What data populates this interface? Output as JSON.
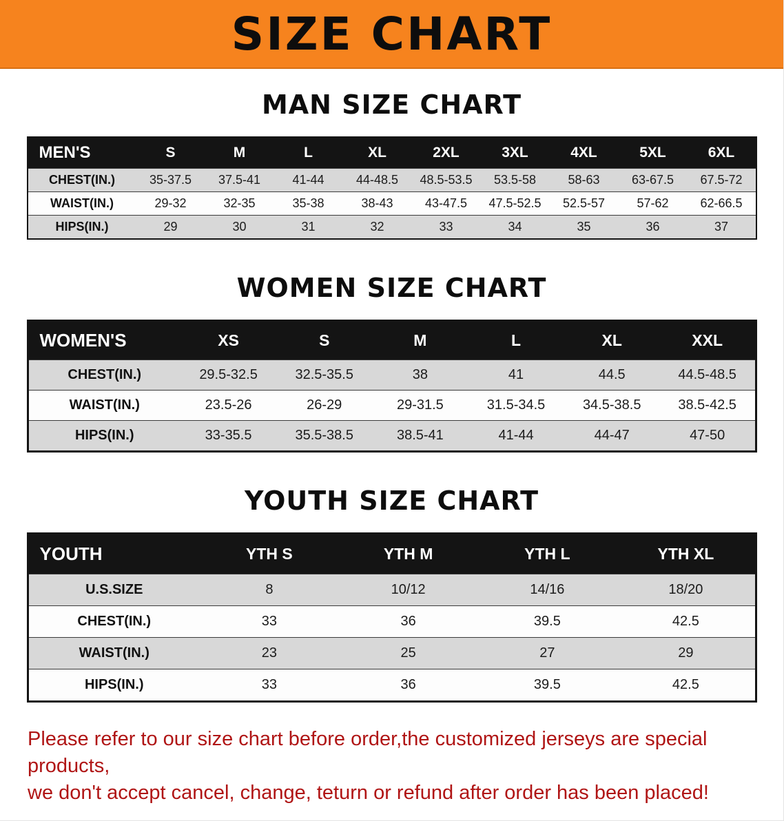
{
  "banner": {
    "title": "SIZE CHART",
    "bg_color": "#f6831e",
    "text_color": "#0d0d0d"
  },
  "sections": [
    {
      "heading": "MAN SIZE CHART",
      "table": {
        "header": [
          "MEN'S",
          "S",
          "M",
          "L",
          "XL",
          "2XL",
          "3XL",
          "4XL",
          "5XL",
          "6XL"
        ],
        "rows": [
          {
            "label": "CHEST(IN.)",
            "values": [
              "35-37.5",
              "37.5-41",
              "41-44",
              "44-48.5",
              "48.5-53.5",
              "53.5-58",
              "58-63",
              "63-67.5",
              "67.5-72"
            ]
          },
          {
            "label": "WAIST(IN.)",
            "values": [
              "29-32",
              "32-35",
              "35-38",
              "38-43",
              "43-47.5",
              "47.5-52.5",
              "52.5-57",
              "57-62",
              "62-66.5"
            ]
          },
          {
            "label": "HIPS(IN.)",
            "values": [
              "29",
              "30",
              "31",
              "32",
              "33",
              "34",
              "35",
              "36",
              "37"
            ]
          }
        ]
      }
    },
    {
      "heading": "WOMEN SIZE CHART",
      "table": {
        "header": [
          "WOMEN'S",
          "XS",
          "S",
          "M",
          "L",
          "XL",
          "XXL"
        ],
        "rows": [
          {
            "label": "CHEST(IN.)",
            "values": [
              "29.5-32.5",
              "32.5-35.5",
              "38",
              "41",
              "44.5",
              "44.5-48.5"
            ]
          },
          {
            "label": "WAIST(IN.)",
            "values": [
              "23.5-26",
              "26-29",
              "29-31.5",
              "31.5-34.5",
              "34.5-38.5",
              "38.5-42.5"
            ]
          },
          {
            "label": "HIPS(IN.)",
            "values": [
              "33-35.5",
              "35.5-38.5",
              "38.5-41",
              "41-44",
              "44-47",
              "47-50"
            ]
          }
        ]
      }
    },
    {
      "heading": "YOUTH SIZE CHART",
      "table": {
        "header": [
          "YOUTH",
          "YTH S",
          "YTH M",
          "YTH L",
          "YTH XL"
        ],
        "rows": [
          {
            "label": "U.S.SIZE",
            "values": [
              "8",
              "10/12",
              "14/16",
              "18/20"
            ]
          },
          {
            "label": "CHEST(IN.)",
            "values": [
              "33",
              "36",
              "39.5",
              "42.5"
            ]
          },
          {
            "label": "WAIST(IN.)",
            "values": [
              "23",
              "25",
              "27",
              "29"
            ]
          },
          {
            "label": "HIPS(IN.)",
            "values": [
              "33",
              "36",
              "39.5",
              "42.5"
            ]
          }
        ]
      }
    }
  ],
  "footer_note": {
    "line1": "Please refer to our size chart before order,the customized jerseys are special products,",
    "line2": "we don't accept cancel, change, teturn or refund after order has been placed!",
    "color": "#b01515"
  }
}
